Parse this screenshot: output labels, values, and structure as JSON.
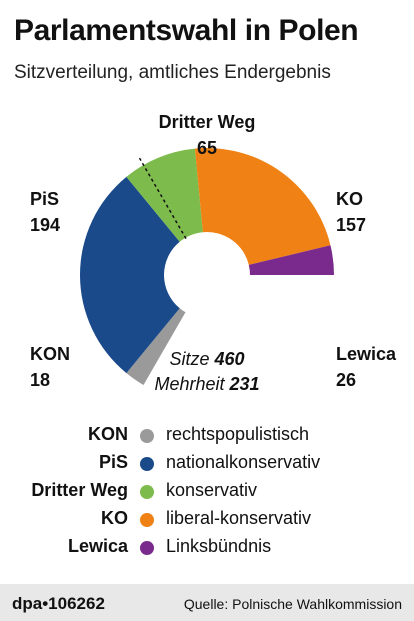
{
  "header": {
    "title": "Parlamentswahl in Polen",
    "subtitle": "Sitzverteilung, amtliches Endergebnis"
  },
  "chart_data": {
    "type": "pie",
    "subtype": "parliament-semicircle",
    "total_label": "Sitze",
    "total": 460,
    "majority_label": "Mehrheit",
    "majority": 231,
    "series": [
      {
        "name": "KON",
        "value": 18,
        "color": "#9a9a9a",
        "label_side": "left-bottom"
      },
      {
        "name": "PiS",
        "value": 194,
        "color": "#1a4a8a",
        "label_side": "left-top"
      },
      {
        "name": "Dritter Weg",
        "value": 65,
        "color": "#7dbb4c",
        "label_side": "top"
      },
      {
        "name": "KO",
        "value": 157,
        "color": "#f08215",
        "label_side": "right-top"
      },
      {
        "name": "Lewica",
        "value": 26,
        "color": "#7a2a8c",
        "label_side": "right-bottom"
      }
    ]
  },
  "legend": [
    {
      "key": "KON",
      "desc": "rechtspopulistisch",
      "color": "#9a9a9a"
    },
    {
      "key": "PiS",
      "desc": "nationalkonservativ",
      "color": "#1a4a8a"
    },
    {
      "key": "Dritter Weg",
      "desc": "konservativ",
      "color": "#7dbb4c"
    },
    {
      "key": "KO",
      "desc": "liberal-konservativ",
      "color": "#f08215"
    },
    {
      "key": "Lewica",
      "desc": "Linksbündnis",
      "color": "#7a2a8c"
    }
  ],
  "footer": {
    "credit": "dpa•106262",
    "source": "Quelle: Polnische Wahlkommission"
  }
}
